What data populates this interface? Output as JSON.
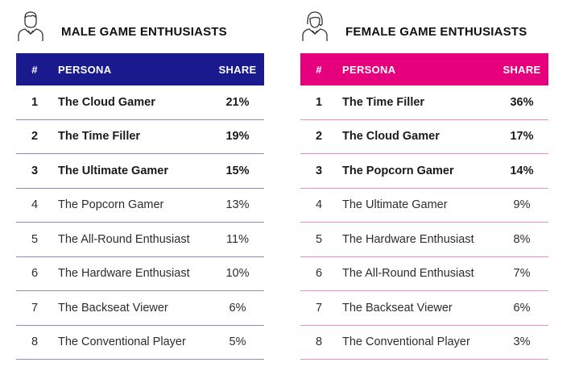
{
  "chart_data": [
    {
      "type": "table",
      "title": "MALE GAME ENTHUSIASTS",
      "columns": [
        "#",
        "PERSONA",
        "SHARE"
      ],
      "header_color": "#1a1a8e",
      "rows": [
        {
          "rank": "1",
          "persona": "The Cloud Gamer",
          "share": "21%",
          "value": 21
        },
        {
          "rank": "2",
          "persona": "The Time Filler",
          "share": "19%",
          "value": 19
        },
        {
          "rank": "3",
          "persona": "The Ultimate Gamer",
          "share": "15%",
          "value": 15
        },
        {
          "rank": "4",
          "persona": "The Popcorn Gamer",
          "share": "13%",
          "value": 13
        },
        {
          "rank": "5",
          "persona": "The All-Round Enthusiast",
          "share": "11%",
          "value": 11
        },
        {
          "rank": "6",
          "persona": "The Hardware Enthusiast",
          "share": "10%",
          "value": 10
        },
        {
          "rank": "7",
          "persona": "The Backseat Viewer",
          "share": "6%",
          "value": 6
        },
        {
          "rank": "8",
          "persona": "The Conventional Player",
          "share": "5%",
          "value": 5
        }
      ]
    },
    {
      "type": "table",
      "title": "FEMALE GAME ENTHUSIASTS",
      "columns": [
        "#",
        "PERSONA",
        "SHARE"
      ],
      "header_color": "#e6007e",
      "rows": [
        {
          "rank": "1",
          "persona": "The Time Filler",
          "share": "36%",
          "value": 36
        },
        {
          "rank": "2",
          "persona": "The Cloud Gamer",
          "share": "17%",
          "value": 17
        },
        {
          "rank": "3",
          "persona": "The Popcorn Gamer",
          "share": "14%",
          "value": 14
        },
        {
          "rank": "4",
          "persona": "The Ultimate Gamer",
          "share": "9%",
          "value": 9
        },
        {
          "rank": "5",
          "persona": "The Hardware Enthusiast",
          "share": "8%",
          "value": 8
        },
        {
          "rank": "6",
          "persona": "The All-Round Enthusiast",
          "share": "7%",
          "value": 7
        },
        {
          "rank": "7",
          "persona": "The Backseat Viewer",
          "share": "6%",
          "value": 6
        },
        {
          "rank": "8",
          "persona": "The Conventional Player",
          "share": "3%",
          "value": 3
        }
      ]
    }
  ],
  "icons": {
    "male": "male-person-icon",
    "female": "female-person-icon"
  }
}
